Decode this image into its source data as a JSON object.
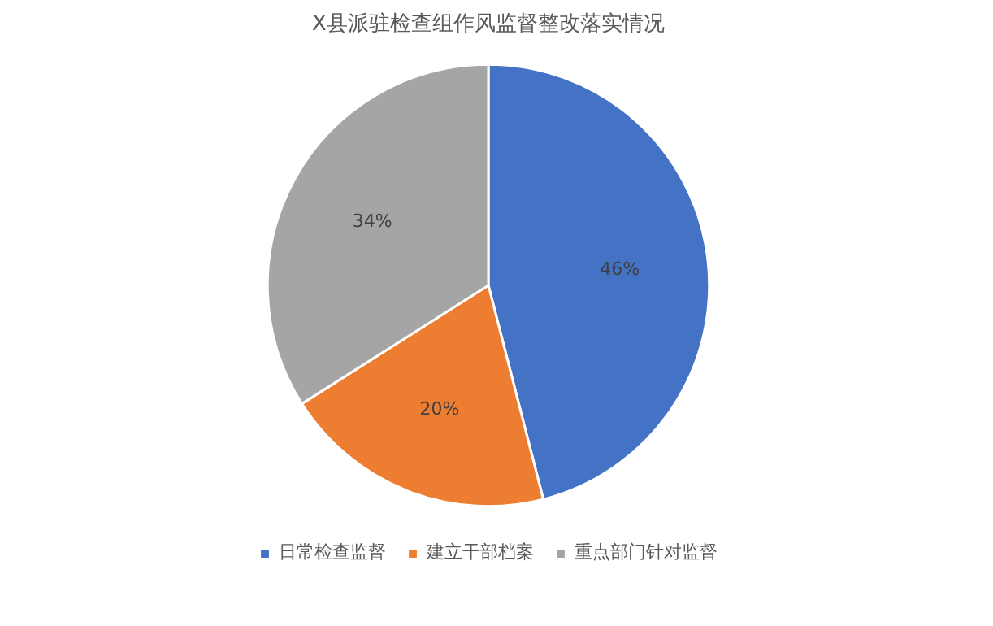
{
  "chart_data": {
    "type": "pie",
    "title": "X县派驻检查组作风监督整改落实情况",
    "categories": [
      "日常检查监督",
      "建立干部档案",
      "重点部门针对监督"
    ],
    "values": [
      46,
      20,
      34
    ],
    "colors": [
      "#4472c4",
      "#ed7d31",
      "#a5a5a5"
    ],
    "value_labels": [
      "46%",
      "20%",
      "34%"
    ],
    "legend": "bottom"
  }
}
